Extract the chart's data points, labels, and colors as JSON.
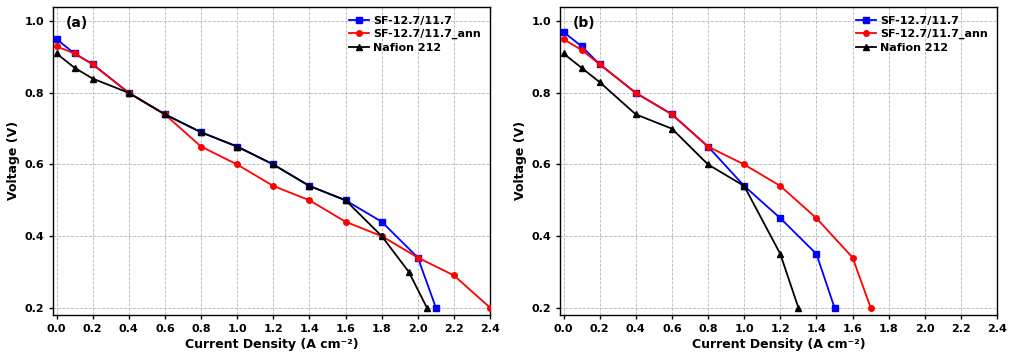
{
  "panel_a": {
    "label": "(a)",
    "sf_x": [
      0.0,
      0.1,
      0.2,
      0.4,
      0.6,
      0.8,
      1.0,
      1.2,
      1.4,
      1.6,
      1.8,
      2.0,
      2.1
    ],
    "sf_y": [
      0.95,
      0.91,
      0.88,
      0.8,
      0.74,
      0.69,
      0.65,
      0.6,
      0.54,
      0.5,
      0.44,
      0.34,
      0.2
    ],
    "sfann_x": [
      0.0,
      0.1,
      0.2,
      0.4,
      0.6,
      0.8,
      1.0,
      1.2,
      1.4,
      1.6,
      1.8,
      2.0,
      2.2,
      2.4
    ],
    "sfann_y": [
      0.93,
      0.91,
      0.88,
      0.8,
      0.74,
      0.65,
      0.6,
      0.54,
      0.5,
      0.44,
      0.4,
      0.34,
      0.29,
      0.2
    ],
    "nafion_x": [
      0.0,
      0.1,
      0.2,
      0.4,
      0.6,
      0.8,
      1.0,
      1.2,
      1.4,
      1.6,
      1.8,
      1.95,
      2.05
    ],
    "nafion_y": [
      0.91,
      0.87,
      0.84,
      0.8,
      0.74,
      0.69,
      0.65,
      0.6,
      0.54,
      0.5,
      0.4,
      0.3,
      0.2
    ],
    "xlabel": "Current Density (A cm⁻²)",
    "ylabel": "Voltage (V)",
    "xlim": [
      -0.02,
      2.4
    ],
    "ylim": [
      0.18,
      1.04
    ],
    "xticks": [
      0.0,
      0.2,
      0.4,
      0.6,
      0.8,
      1.0,
      1.2,
      1.4,
      1.6,
      1.8,
      2.0,
      2.2,
      2.4
    ],
    "yticks": [
      0.2,
      0.4,
      0.6,
      0.8,
      1.0
    ]
  },
  "panel_b": {
    "label": "(b)",
    "sf_x": [
      0.0,
      0.1,
      0.2,
      0.4,
      0.6,
      0.8,
      1.0,
      1.2,
      1.4,
      1.5
    ],
    "sf_y": [
      0.97,
      0.93,
      0.88,
      0.8,
      0.74,
      0.65,
      0.54,
      0.45,
      0.35,
      0.2
    ],
    "sfann_x": [
      0.0,
      0.1,
      0.2,
      0.4,
      0.6,
      0.8,
      1.0,
      1.2,
      1.4,
      1.6,
      1.7
    ],
    "sfann_y": [
      0.95,
      0.92,
      0.88,
      0.8,
      0.74,
      0.65,
      0.6,
      0.54,
      0.45,
      0.34,
      0.2
    ],
    "nafion_x": [
      0.0,
      0.1,
      0.2,
      0.4,
      0.6,
      0.8,
      1.0,
      1.2,
      1.3
    ],
    "nafion_y": [
      0.91,
      0.87,
      0.83,
      0.74,
      0.7,
      0.6,
      0.54,
      0.35,
      0.2
    ],
    "xlabel": "Current Density (A cm⁻²)",
    "ylabel": "Voltage (V)",
    "xlim": [
      -0.02,
      2.4
    ],
    "ylim": [
      0.18,
      1.04
    ],
    "xticks": [
      0.0,
      0.2,
      0.4,
      0.6,
      0.8,
      1.0,
      1.2,
      1.4,
      1.6,
      1.8,
      2.0,
      2.2,
      2.4
    ],
    "yticks": [
      0.2,
      0.4,
      0.6,
      0.8,
      1.0
    ]
  },
  "colors": {
    "sf": "#0000FF",
    "sfann": "#FF0000",
    "nafion": "#000000"
  },
  "legend_labels": [
    "SF-12.7/11.7",
    "SF-12.7/11.7_ann",
    "Nafion 212"
  ],
  "marker_size": 4,
  "line_width": 1.3,
  "font_size_label": 9,
  "font_size_tick": 8,
  "font_size_legend": 8,
  "font_size_panel_label": 10
}
